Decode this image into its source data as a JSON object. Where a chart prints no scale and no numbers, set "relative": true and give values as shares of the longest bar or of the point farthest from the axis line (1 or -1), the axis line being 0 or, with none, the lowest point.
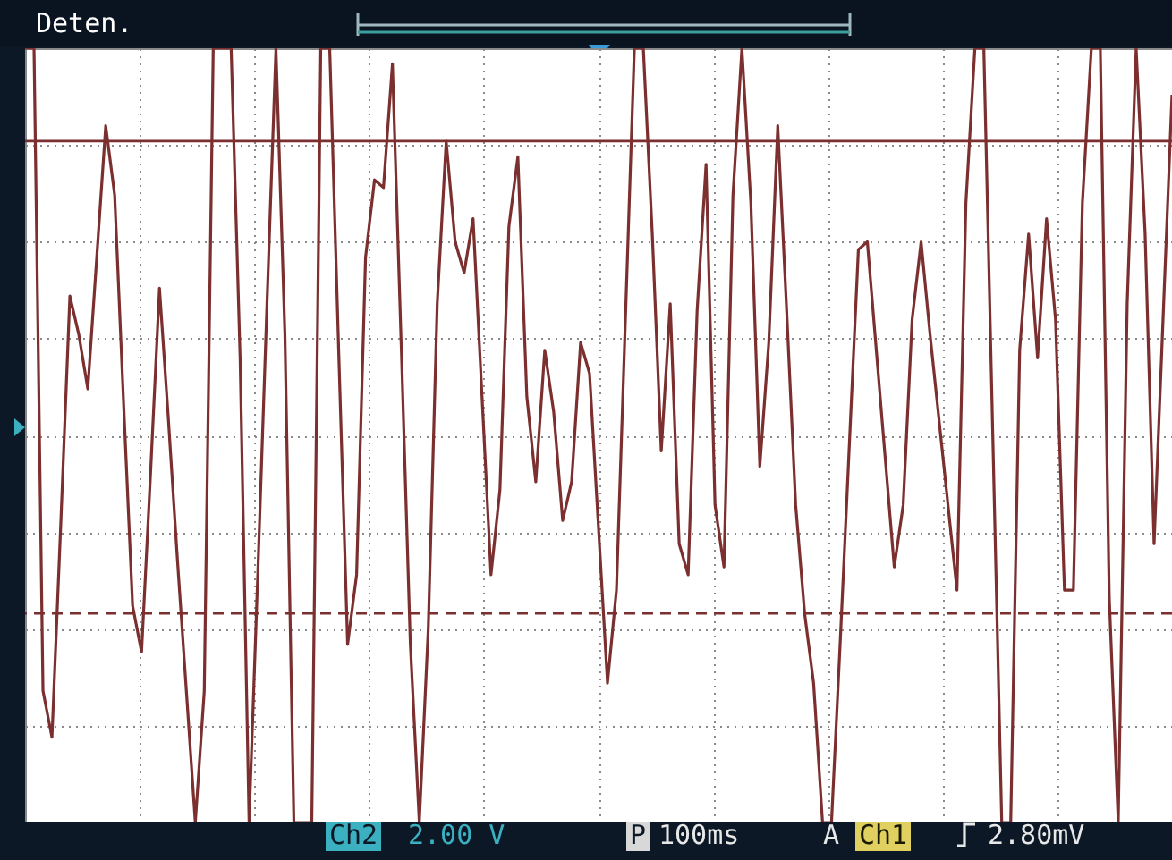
{
  "chart_data": {
    "type": "line",
    "relative": true,
    "categories": [
      null,
      null,
      null,
      null,
      null,
      null,
      null,
      null,
      null,
      null,
      null,
      null,
      null,
      null,
      null,
      null,
      null,
      null,
      null,
      null,
      null,
      null,
      null,
      null,
      null,
      null,
      null,
      null,
      null,
      null,
      null,
      null,
      null,
      null,
      null,
      null,
      null,
      null,
      null,
      null,
      null,
      null,
      null,
      null,
      null,
      null,
      null,
      null,
      null,
      null,
      null,
      null,
      null,
      null,
      null,
      null,
      null,
      null,
      null,
      null,
      null,
      null,
      null,
      null,
      null,
      null,
      null,
      null,
      null,
      null,
      null,
      null,
      null,
      null,
      null,
      null,
      null,
      null,
      null,
      null,
      null,
      null,
      null,
      null,
      null,
      null,
      null,
      null,
      null,
      null,
      null,
      null,
      null,
      null,
      null,
      null,
      null,
      null,
      null,
      null,
      null,
      null,
      null,
      null,
      null,
      null,
      null,
      null,
      null,
      null,
      null,
      null,
      null,
      null,
      null,
      null,
      null,
      null,
      null,
      null,
      null,
      null,
      null,
      null,
      null,
      null,
      null,
      null,
      null
    ],
    "series": [
      {
        "color": "#7b2f2f",
        "values": [
          1.0,
          1.0,
          0.17,
          0.11,
          0.39,
          0.68,
          0.63,
          0.56,
          0.73,
          0.9,
          0.81,
          0.54,
          0.28,
          0.22,
          0.45,
          0.69,
          0.52,
          0.34,
          0.17,
          0.0,
          0.17,
          1.0,
          1.0,
          1.0,
          0.6,
          0.0,
          0.33,
          0.67,
          1.0,
          0.63,
          0.0,
          0.0,
          0.0,
          1.0,
          1.0,
          0.61,
          0.23,
          0.32,
          0.73,
          0.83,
          0.82,
          0.98,
          0.61,
          0.23,
          0.0,
          0.25,
          0.67,
          0.88,
          0.75,
          0.71,
          0.78,
          0.55,
          0.32,
          0.43,
          0.77,
          0.86,
          0.55,
          0.44,
          0.61,
          0.53,
          0.39,
          0.44,
          0.62,
          0.58,
          0.38,
          0.18,
          0.3,
          0.65,
          1.0,
          1.0,
          0.76,
          0.48,
          0.67,
          0.36,
          0.32,
          0.66,
          0.85,
          0.41,
          0.33,
          0.81,
          1.0,
          0.8,
          0.46,
          0.62,
          0.9,
          0.66,
          0.41,
          0.27,
          0.18,
          0.0,
          0.0,
          0.24,
          0.49,
          0.74,
          0.75,
          0.61,
          0.47,
          0.33,
          0.41,
          0.65,
          0.75,
          0.63,
          0.52,
          0.41,
          0.3,
          0.8,
          1.0,
          1.0,
          0.5,
          0.0,
          0.0,
          0.61,
          0.76,
          0.6,
          0.78,
          0.65,
          0.3,
          0.3,
          0.8,
          1.0,
          1.0,
          0.29,
          0.0,
          0.67,
          1.0,
          0.76,
          0.36,
          0.65,
          0.94
        ]
      }
    ],
    "ref_lines": [
      {
        "axis": "y",
        "value": 0.88,
        "color": "#7b2f2f",
        "line_style": "solid"
      },
      {
        "axis": "y",
        "value": 0.27,
        "color": "#7b2f2f",
        "line_style": "dashed"
      }
    ],
    "grid": true,
    "line_style": "solid",
    "marker": "none",
    "annotations": [
      "Deten.",
      "Ch2",
      "2.00 V",
      "P",
      "100ms",
      "A",
      "Ch1",
      "2.80mV"
    ]
  }
}
